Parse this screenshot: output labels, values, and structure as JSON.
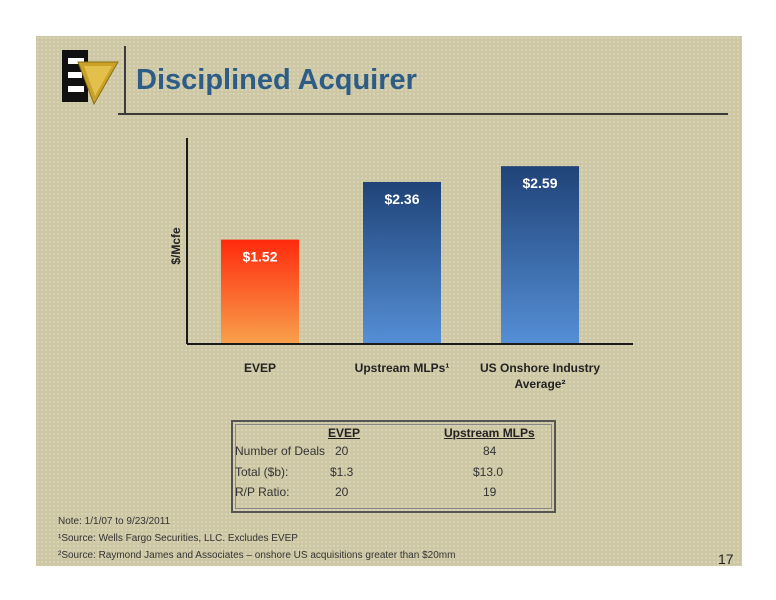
{
  "header": {
    "title": "Disciplined Acquirer"
  },
  "chart_data": {
    "type": "bar",
    "ylabel": "$/Mcfe",
    "categories": [
      "EVEP",
      "Upstream MLPs¹",
      "US Onshore Industry Average²"
    ],
    "values": [
      1.52,
      2.36,
      2.59
    ],
    "value_labels": [
      "$1.52",
      "$2.36",
      "$2.59"
    ],
    "ylim": [
      0,
      3.0
    ],
    "grid": false,
    "legend": "none",
    "colors": [
      "#f86a1e",
      "#3d6fae",
      "#3d6fae"
    ]
  },
  "table": {
    "col_headers": [
      "EVEP",
      "Upstream MLPs"
    ],
    "rows": [
      {
        "label": "Number of Deals",
        "evep": "20",
        "mlps": "84"
      },
      {
        "label": "Total ($b):",
        "evep": "$1.3",
        "mlps": "$13.0"
      },
      {
        "label": "R/P Ratio:",
        "evep": "20",
        "mlps": "19"
      }
    ]
  },
  "footnotes": {
    "note": "Note:  1/1/07 to 9/23/2011",
    "source1": "¹Source: Wells Fargo Securities, LLC.  Excludes EVEP",
    "source2": "²Source: Raymond James and Associates – onshore US acquisitions greater than $20mm"
  },
  "page_number": "17",
  "colors": {
    "title": "#2d5d86",
    "background": "#cdc7a4"
  }
}
